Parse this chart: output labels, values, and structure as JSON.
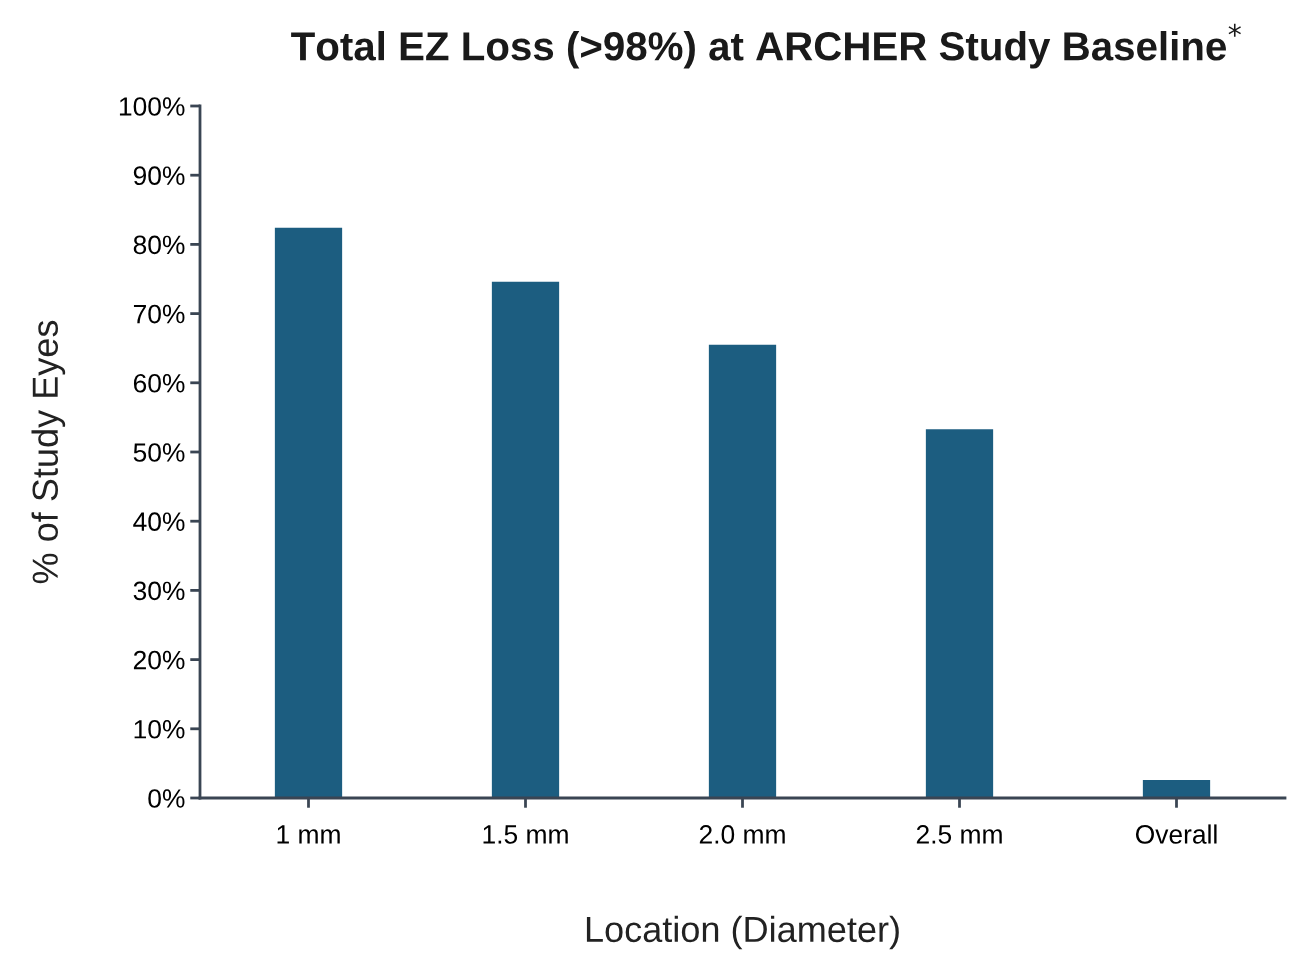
{
  "chart_data": {
    "type": "bar",
    "title": "Total EZ Loss (>98%) at ARCHER Study Baseline$^{*}$",
    "xlabel": "Location (Diameter)",
    "ylabel": "% of Study Eyes",
    "categories": [
      "1 mm",
      "1.5 mm",
      "2.0 mm",
      "2.5 mm",
      "Overall"
    ],
    "values": [
      82.4,
      74.6,
      65.5,
      53.3,
      2.6
    ],
    "color": "#1c5d80",
    "ylim": [
      0,
      100
    ],
    "yticks": [
      {
        "value": 0,
        "label": "0%"
      },
      {
        "value": 10,
        "label": "10%"
      },
      {
        "value": 20,
        "label": "20%"
      },
      {
        "value": 30,
        "label": "30%"
      },
      {
        "value": 40,
        "label": "40%"
      },
      {
        "value": 50,
        "label": "50%"
      },
      {
        "value": 60,
        "label": "60%"
      },
      {
        "value": 70,
        "label": "70%"
      },
      {
        "value": 80,
        "label": "80%"
      },
      {
        "value": 90,
        "label": "90%"
      },
      {
        "value": 100,
        "label": "100%"
      }
    ],
    "grid": false
  }
}
